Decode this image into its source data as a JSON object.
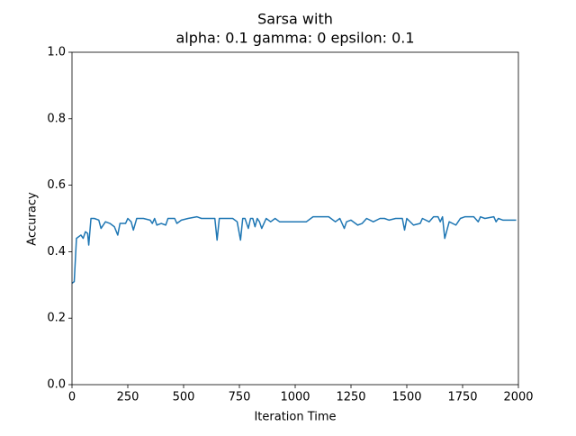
{
  "chart_data": {
    "type": "line",
    "title": [
      "Sarsa with",
      "alpha: 0.1 gamma: 0 epsilon: 0.1"
    ],
    "xlabel": "Iteration Time",
    "ylabel": "Accuracy",
    "series": [
      {
        "color": "#1f77b4",
        "x": [
          0,
          10,
          20,
          40,
          50,
          60,
          70,
          75,
          85,
          100,
          120,
          130,
          150,
          170,
          190,
          205,
          215,
          240,
          250,
          265,
          275,
          290,
          320,
          350,
          360,
          370,
          380,
          400,
          420,
          430,
          440,
          460,
          470,
          490,
          520,
          560,
          580,
          600,
          620,
          640,
          650,
          660,
          680,
          720,
          740,
          755,
          765,
          775,
          790,
          800,
          810,
          820,
          830,
          840,
          850,
          870,
          890,
          910,
          930,
          950,
          1000,
          1050,
          1080,
          1150,
          1180,
          1200,
          1220,
          1230,
          1250,
          1280,
          1300,
          1320,
          1350,
          1380,
          1400,
          1420,
          1450,
          1480,
          1490,
          1500,
          1530,
          1560,
          1570,
          1600,
          1620,
          1640,
          1650,
          1660,
          1670,
          1690,
          1720,
          1740,
          1760,
          1800,
          1820,
          1830,
          1850,
          1890,
          1900,
          1910,
          1930,
          1950,
          1990
        ],
        "values": [
          0.305,
          0.31,
          0.44,
          0.45,
          0.44,
          0.46,
          0.455,
          0.42,
          0.5,
          0.5,
          0.495,
          0.47,
          0.49,
          0.485,
          0.475,
          0.45,
          0.485,
          0.485,
          0.5,
          0.49,
          0.465,
          0.5,
          0.5,
          0.495,
          0.485,
          0.5,
          0.48,
          0.485,
          0.48,
          0.5,
          0.5,
          0.5,
          0.485,
          0.495,
          0.5,
          0.505,
          0.5,
          0.5,
          0.5,
          0.5,
          0.435,
          0.5,
          0.5,
          0.5,
          0.49,
          0.435,
          0.5,
          0.5,
          0.47,
          0.5,
          0.5,
          0.475,
          0.5,
          0.49,
          0.47,
          0.5,
          0.49,
          0.5,
          0.49,
          0.49,
          0.49,
          0.49,
          0.505,
          0.505,
          0.49,
          0.5,
          0.47,
          0.49,
          0.495,
          0.48,
          0.485,
          0.5,
          0.49,
          0.5,
          0.5,
          0.495,
          0.5,
          0.5,
          0.465,
          0.5,
          0.48,
          0.485,
          0.5,
          0.49,
          0.505,
          0.505,
          0.49,
          0.505,
          0.44,
          0.49,
          0.48,
          0.5,
          0.505,
          0.505,
          0.49,
          0.505,
          0.5,
          0.505,
          0.49,
          0.5,
          0.495,
          0.495,
          0.495
        ]
      }
    ],
    "xlim": [
      0,
      2000
    ],
    "xticks": [
      0,
      250,
      500,
      750,
      1000,
      1250,
      1500,
      1750,
      2000
    ],
    "ylim": [
      0,
      1
    ],
    "yticks": [
      {
        "value": 0,
        "label": "0.0"
      },
      0.2,
      0.4,
      0.6,
      0.8,
      {
        "value": 1,
        "label": "1.0"
      }
    ],
    "grid": false
  }
}
